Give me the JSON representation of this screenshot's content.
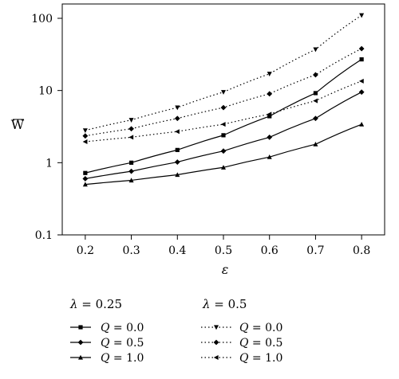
{
  "chart_data": {
    "type": "line",
    "xlabel": "ε",
    "ylabel": "W",
    "ylabel_overline": true,
    "yscale": "log",
    "xlim": [
      0.15,
      0.85
    ],
    "ylim": [
      0.1,
      100
    ],
    "xticks": [
      "0.2",
      "0.3",
      "0.4",
      "0.5",
      "0.6",
      "0.7",
      "0.8"
    ],
    "yticks": [
      "0.1",
      "1",
      "10",
      "100"
    ],
    "x": [
      0.2,
      0.3,
      0.4,
      0.5,
      0.6,
      0.7,
      0.8
    ],
    "groups": [
      {
        "label": "λ = 0.25",
        "style": "solid",
        "series": [
          {
            "name": "Q = 0.0",
            "marker": "square",
            "values": [
              0.72,
              1.0,
              1.5,
              2.4,
              4.4,
              9.2,
              27
            ]
          },
          {
            "name": "Q = 0.5",
            "marker": "diamond",
            "values": [
              0.6,
              0.76,
              1.02,
              1.45,
              2.25,
              4.1,
              9.5
            ]
          },
          {
            "name": "Q = 1.0",
            "marker": "triangle",
            "values": [
              0.5,
              0.57,
              0.68,
              0.86,
              1.2,
              1.8,
              3.4
            ]
          }
        ]
      },
      {
        "label": "λ = 0.5",
        "style": "dotted",
        "series": [
          {
            "name": "Q = 0.0",
            "marker": "triangle-down",
            "values": [
              2.8,
              3.9,
              5.8,
              9.5,
              17,
              37,
              110
            ]
          },
          {
            "name": "Q = 0.5",
            "marker": "diamond",
            "values": [
              2.35,
              2.95,
              4.1,
              5.8,
              9.0,
              16.5,
              38
            ]
          },
          {
            "name": "Q = 1.0",
            "marker": "triangle-left",
            "values": [
              1.95,
              2.25,
              2.7,
              3.4,
              4.7,
              7.2,
              13.5
            ]
          }
        ]
      }
    ]
  }
}
